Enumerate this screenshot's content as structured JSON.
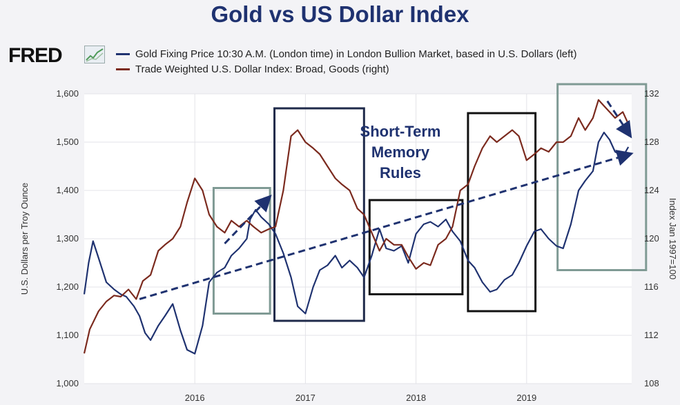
{
  "chart_data": {
    "type": "line",
    "title": "Gold vs US Dollar Index",
    "source_logo": "FRED",
    "x_ticks": [
      "2016",
      "2017",
      "2018",
      "2019"
    ],
    "xlim": [
      2015.0,
      2019.95
    ],
    "y_left": {
      "label": "U.S. Dollars per Troy Ounce",
      "ticks": [
        "1,000",
        "1,100",
        "1,200",
        "1,300",
        "1,400",
        "1,500",
        "1,600"
      ],
      "ylim": [
        1000,
        1600
      ]
    },
    "y_right": {
      "label": "Index Jan 1997=100",
      "ticks": [
        "108",
        "112",
        "116",
        "120",
        "124",
        "128",
        "132"
      ],
      "ylim": [
        108,
        132
      ]
    },
    "series": [
      {
        "name": "Gold Fixing Price 10:30 A.M. (London time) in London Bullion Market, based in U.S. Dollars (left)",
        "axis": "left",
        "color": "#1f3270",
        "points": [
          [
            2015.0,
            1185
          ],
          [
            2015.04,
            1250
          ],
          [
            2015.08,
            1295
          ],
          [
            2015.13,
            1260
          ],
          [
            2015.2,
            1210
          ],
          [
            2015.27,
            1195
          ],
          [
            2015.33,
            1185
          ],
          [
            2015.38,
            1180
          ],
          [
            2015.45,
            1160
          ],
          [
            2015.5,
            1140
          ],
          [
            2015.55,
            1105
          ],
          [
            2015.6,
            1090
          ],
          [
            2015.67,
            1120
          ],
          [
            2015.73,
            1140
          ],
          [
            2015.8,
            1165
          ],
          [
            2015.87,
            1110
          ],
          [
            2015.93,
            1070
          ],
          [
            2016.0,
            1062
          ],
          [
            2016.07,
            1120
          ],
          [
            2016.13,
            1210
          ],
          [
            2016.2,
            1230
          ],
          [
            2016.27,
            1240
          ],
          [
            2016.33,
            1265
          ],
          [
            2016.4,
            1280
          ],
          [
            2016.47,
            1300
          ],
          [
            2016.5,
            1340
          ],
          [
            2016.55,
            1360
          ],
          [
            2016.6,
            1345
          ],
          [
            2016.67,
            1330
          ],
          [
            2016.73,
            1310
          ],
          [
            2016.8,
            1270
          ],
          [
            2016.87,
            1220
          ],
          [
            2016.93,
            1160
          ],
          [
            2017.0,
            1145
          ],
          [
            2017.07,
            1200
          ],
          [
            2017.13,
            1235
          ],
          [
            2017.2,
            1245
          ],
          [
            2017.27,
            1265
          ],
          [
            2017.33,
            1240
          ],
          [
            2017.4,
            1255
          ],
          [
            2017.47,
            1240
          ],
          [
            2017.53,
            1220
          ],
          [
            2017.6,
            1265
          ],
          [
            2017.67,
            1320
          ],
          [
            2017.73,
            1280
          ],
          [
            2017.8,
            1275
          ],
          [
            2017.87,
            1285
          ],
          [
            2017.93,
            1250
          ],
          [
            2018.0,
            1310
          ],
          [
            2018.07,
            1330
          ],
          [
            2018.13,
            1335
          ],
          [
            2018.2,
            1325
          ],
          [
            2018.27,
            1340
          ],
          [
            2018.33,
            1315
          ],
          [
            2018.4,
            1295
          ],
          [
            2018.47,
            1255
          ],
          [
            2018.53,
            1240
          ],
          [
            2018.6,
            1210
          ],
          [
            2018.67,
            1190
          ],
          [
            2018.73,
            1195
          ],
          [
            2018.8,
            1215
          ],
          [
            2018.87,
            1225
          ],
          [
            2018.93,
            1250
          ],
          [
            2019.0,
            1285
          ],
          [
            2019.07,
            1315
          ],
          [
            2019.13,
            1320
          ],
          [
            2019.2,
            1300
          ],
          [
            2019.27,
            1285
          ],
          [
            2019.33,
            1280
          ],
          [
            2019.4,
            1330
          ],
          [
            2019.47,
            1400
          ],
          [
            2019.53,
            1420
          ],
          [
            2019.6,
            1440
          ],
          [
            2019.65,
            1500
          ],
          [
            2019.7,
            1520
          ],
          [
            2019.75,
            1505
          ],
          [
            2019.8,
            1480
          ],
          [
            2019.87,
            1470
          ],
          [
            2019.92,
            1490
          ]
        ]
      },
      {
        "name": "Trade Weighted U.S. Dollar Index: Broad, Goods (right)",
        "axis": "right",
        "color": "#7b2a1e",
        "points": [
          [
            2015.0,
            110.5
          ],
          [
            2015.05,
            112.5
          ],
          [
            2015.13,
            114.0
          ],
          [
            2015.2,
            114.8
          ],
          [
            2015.27,
            115.3
          ],
          [
            2015.33,
            115.2
          ],
          [
            2015.4,
            115.8
          ],
          [
            2015.47,
            115.0
          ],
          [
            2015.53,
            116.5
          ],
          [
            2015.6,
            117.0
          ],
          [
            2015.67,
            119.0
          ],
          [
            2015.73,
            119.5
          ],
          [
            2015.8,
            120.0
          ],
          [
            2015.87,
            121.0
          ],
          [
            2015.93,
            123.0
          ],
          [
            2016.0,
            125.0
          ],
          [
            2016.07,
            124.0
          ],
          [
            2016.13,
            122.0
          ],
          [
            2016.2,
            121.0
          ],
          [
            2016.27,
            120.5
          ],
          [
            2016.33,
            121.5
          ],
          [
            2016.4,
            121.0
          ],
          [
            2016.47,
            121.5
          ],
          [
            2016.53,
            121.0
          ],
          [
            2016.6,
            120.5
          ],
          [
            2016.67,
            120.8
          ],
          [
            2016.73,
            121.0
          ],
          [
            2016.8,
            124.0
          ],
          [
            2016.87,
            128.5
          ],
          [
            2016.93,
            129.0
          ],
          [
            2017.0,
            128.0
          ],
          [
            2017.07,
            127.5
          ],
          [
            2017.13,
            127.0
          ],
          [
            2017.2,
            126.0
          ],
          [
            2017.27,
            125.0
          ],
          [
            2017.33,
            124.5
          ],
          [
            2017.4,
            124.0
          ],
          [
            2017.47,
            122.5
          ],
          [
            2017.53,
            122.0
          ],
          [
            2017.6,
            120.5
          ],
          [
            2017.67,
            119.0
          ],
          [
            2017.73,
            120.0
          ],
          [
            2017.8,
            119.5
          ],
          [
            2017.87,
            119.5
          ],
          [
            2017.93,
            118.5
          ],
          [
            2018.0,
            117.5
          ],
          [
            2018.07,
            118.0
          ],
          [
            2018.13,
            117.8
          ],
          [
            2018.2,
            119.5
          ],
          [
            2018.27,
            120.0
          ],
          [
            2018.33,
            121.0
          ],
          [
            2018.4,
            124.0
          ],
          [
            2018.47,
            124.5
          ],
          [
            2018.53,
            126.0
          ],
          [
            2018.6,
            127.5
          ],
          [
            2018.67,
            128.5
          ],
          [
            2018.73,
            128.0
          ],
          [
            2018.8,
            128.5
          ],
          [
            2018.87,
            129.0
          ],
          [
            2018.93,
            128.5
          ],
          [
            2019.0,
            126.5
          ],
          [
            2019.07,
            127.0
          ],
          [
            2019.13,
            127.5
          ],
          [
            2019.2,
            127.2
          ],
          [
            2019.27,
            128.0
          ],
          [
            2019.33,
            128.0
          ],
          [
            2019.4,
            128.5
          ],
          [
            2019.47,
            130.0
          ],
          [
            2019.53,
            129.0
          ],
          [
            2019.6,
            130.0
          ],
          [
            2019.65,
            131.5
          ],
          [
            2019.7,
            131.0
          ],
          [
            2019.75,
            130.5
          ],
          [
            2019.8,
            130.0
          ],
          [
            2019.87,
            130.5
          ],
          [
            2019.92,
            129.5
          ]
        ]
      }
    ],
    "trend_lines": [
      {
        "name": "gold-trend-arrow",
        "color": "#1f3270",
        "from": [
          2015.5,
          1175
        ],
        "to": [
          2019.98,
          1475
        ]
      },
      {
        "name": "gold-short-trend-arrow",
        "color": "#1f3270",
        "from": [
          2016.27,
          1290
        ],
        "to": [
          2016.67,
          1385
        ]
      },
      {
        "name": "dollar-drop-arrow",
        "color": "#1f3270",
        "from": [
          2019.73,
          1585
        ],
        "to": [
          2019.98,
          1515
        ]
      }
    ],
    "highlight_boxes": [
      {
        "name": "box-mid-2016",
        "color": "#7f9a94",
        "x": [
          2016.17,
          2016.68
        ],
        "y": [
          1145,
          1405
        ]
      },
      {
        "name": "box-late-2016",
        "color": "#1f2a4a",
        "x": [
          2016.72,
          2017.53
        ],
        "y": [
          1130,
          1570
        ]
      },
      {
        "name": "box-early-2018",
        "color": "#111111",
        "x": [
          2017.58,
          2018.42
        ],
        "y": [
          1185,
          1380
        ]
      },
      {
        "name": "box-late-2018",
        "color": "#111111",
        "x": [
          2018.47,
          2019.08
        ],
        "y": [
          1150,
          1560
        ]
      },
      {
        "name": "box-2019",
        "color": "#7f9a94",
        "x": [
          2019.28,
          2020.08
        ],
        "y": [
          1235,
          1620
        ]
      }
    ],
    "annotation": {
      "lines": [
        "Short-Term",
        "Memory",
        "Rules"
      ],
      "color": "#1f3270"
    }
  }
}
